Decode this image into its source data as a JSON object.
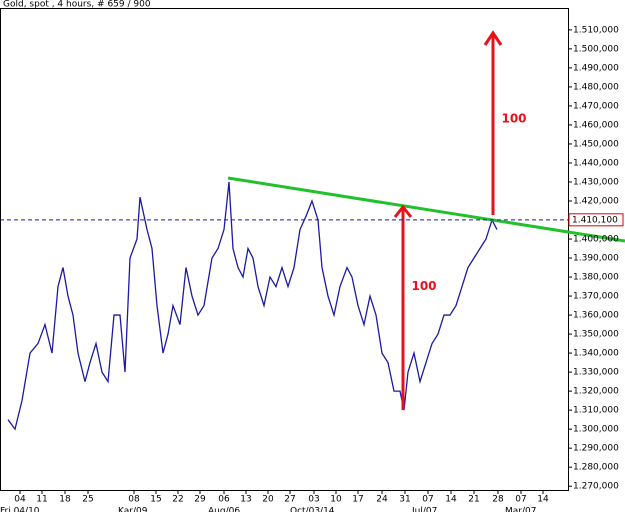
{
  "chart_data": {
    "type": "line",
    "title": "Gold, spot , 4 hours, # 659 / 900",
    "series": [
      {
        "name": "Gold",
        "color": "#1a1aa6",
        "x": [
          8,
          15,
          22,
          30,
          38,
          45,
          52,
          58,
          63,
          68,
          73,
          78,
          85,
          90,
          96,
          102,
          108,
          114,
          120,
          125,
          130,
          137,
          140,
          147,
          152,
          157,
          163,
          168,
          173,
          180,
          186,
          192,
          198,
          204,
          212,
          218,
          224,
          229,
          233,
          238,
          243,
          248,
          253,
          258,
          264,
          270,
          276,
          282,
          288,
          294,
          300,
          306,
          312,
          318,
          322,
          328,
          334,
          340,
          347,
          352,
          358,
          364,
          370,
          376,
          382,
          388,
          394,
          400,
          404,
          408,
          414,
          420,
          426,
          432,
          438,
          444,
          450,
          456,
          462,
          468,
          474,
          480,
          486,
          492,
          497
        ],
        "values": [
          1305000,
          1300000,
          1315000,
          1340000,
          1345000,
          1355000,
          1340000,
          1375000,
          1385000,
          1370000,
          1360000,
          1340000,
          1325000,
          1335000,
          1345000,
          1330000,
          1325000,
          1360000,
          1360000,
          1330000,
          1390000,
          1400000,
          1422000,
          1405000,
          1395000,
          1365000,
          1340000,
          1350000,
          1365000,
          1355000,
          1385000,
          1370000,
          1360000,
          1365000,
          1390000,
          1395000,
          1405000,
          1430000,
          1395000,
          1385000,
          1380000,
          1395000,
          1390000,
          1375000,
          1365000,
          1380000,
          1375000,
          1385000,
          1375000,
          1385000,
          1405000,
          1412000,
          1420000,
          1410000,
          1385000,
          1370000,
          1360000,
          1375000,
          1385000,
          1380000,
          1365000,
          1355000,
          1370000,
          1360000,
          1340000,
          1335000,
          1320000,
          1320000,
          1310000,
          1330000,
          1340000,
          1325000,
          1335000,
          1345000,
          1350000,
          1360000,
          1360000,
          1365000,
          1375000,
          1385000,
          1390000,
          1395000,
          1400000,
          1410000,
          1405000
        ]
      }
    ],
    "xlim": [
      0,
      568
    ],
    "ylim": [
      1268000,
      1521500
    ],
    "yticks": [
      {
        "value": 1270000,
        "label": "1.270,000"
      },
      {
        "value": 1280000,
        "label": "1.280,000"
      },
      {
        "value": 1290000,
        "label": "1.290,000"
      },
      {
        "value": 1300000,
        "label": "1.300,000"
      },
      {
        "value": 1310000,
        "label": "1.310,000"
      },
      {
        "value": 1320000,
        "label": "1.320,000"
      },
      {
        "value": 1330000,
        "label": "1.330,000"
      },
      {
        "value": 1340000,
        "label": "1.340,000"
      },
      {
        "value": 1350000,
        "label": "1.350,000"
      },
      {
        "value": 1360000,
        "label": "1.360,000"
      },
      {
        "value": 1370000,
        "label": "1.370,000"
      },
      {
        "value": 1380000,
        "label": "1.380,000"
      },
      {
        "value": 1390000,
        "label": "1.390,000"
      },
      {
        "value": 1400000,
        "label": "1.400,000"
      },
      {
        "value": 1410000,
        "label": "1.410,000"
      },
      {
        "value": 1420000,
        "label": "1.420,000"
      },
      {
        "value": 1430000,
        "label": "1.430,000"
      },
      {
        "value": 1440000,
        "label": "1.440,000"
      },
      {
        "value": 1450000,
        "label": "1.450,000"
      },
      {
        "value": 1460000,
        "label": "1.460,000"
      },
      {
        "value": 1470000,
        "label": "1.470,000"
      },
      {
        "value": 1480000,
        "label": "1.480,000"
      },
      {
        "value": 1490000,
        "label": "1.490,000"
      },
      {
        "value": 1500000,
        "label": "1.500,000"
      },
      {
        "value": 1510000,
        "label": "1.510,000"
      }
    ],
    "xticks": [
      {
        "value": 20,
        "label": "04"
      },
      {
        "value": 42,
        "label": "11"
      },
      {
        "value": 65,
        "label": "18"
      },
      {
        "value": 88,
        "label": "25"
      },
      {
        "value": 134,
        "label": "08"
      },
      {
        "value": 156,
        "label": "15"
      },
      {
        "value": 178,
        "label": "22"
      },
      {
        "value": 200,
        "label": "29"
      },
      {
        "value": 224,
        "label": "06"
      },
      {
        "value": 246,
        "label": "13"
      },
      {
        "value": 268,
        "label": "20"
      },
      {
        "value": 290,
        "label": "27"
      },
      {
        "value": 314,
        "label": "03"
      },
      {
        "value": 336,
        "label": "10"
      },
      {
        "value": 358,
        "label": "17"
      },
      {
        "value": 382,
        "label": "24"
      },
      {
        "value": 405,
        "label": "31"
      },
      {
        "value": 428,
        "label": "07"
      },
      {
        "value": 451,
        "label": "14"
      },
      {
        "value": 474,
        "label": "21"
      },
      {
        "value": 498,
        "label": "28"
      },
      {
        "value": 521,
        "label": "07"
      },
      {
        "value": 543,
        "label": "14"
      }
    ],
    "date_labels": [
      {
        "value": 0,
        "label": "Fri 04/10"
      },
      {
        "value": 118,
        "label": "Kar/09"
      },
      {
        "value": 208,
        "label": "Aug/06"
      },
      {
        "value": 290,
        "label": "Oct/03/14"
      },
      {
        "value": 412,
        "label": "Jul/07"
      },
      {
        "value": 505,
        "label": "Mar/07"
      }
    ],
    "level": {
      "value": 1410100,
      "label": "1.410,100"
    },
    "annotations": [
      {
        "text": "100",
        "x": 424,
        "y": 1375000
      },
      {
        "text": "100",
        "x": 514,
        "y": 1463000
      }
    ]
  }
}
